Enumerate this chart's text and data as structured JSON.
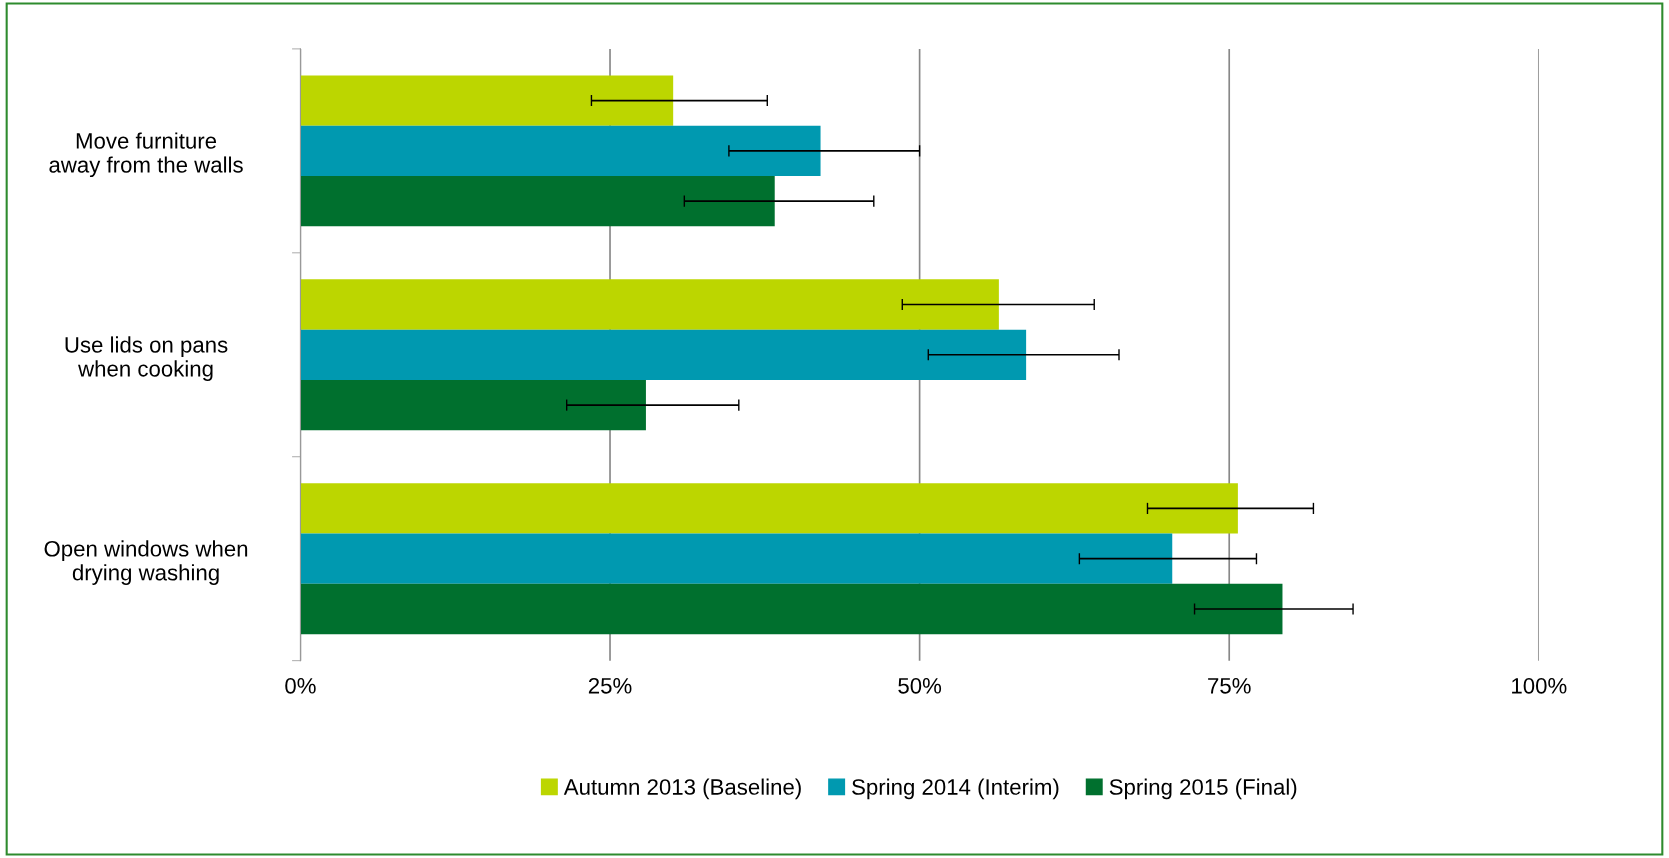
{
  "chart_data": {
    "type": "bar",
    "orientation": "horizontal",
    "categories": [
      "Move furniture\naway from the walls",
      "Use lids on pans\nwhen cooking",
      "Open windows when\ndrying washing"
    ],
    "series": [
      {
        "name": "Autumn 2013 (Baseline)",
        "color": "#bcd600",
        "values": [
          30.1,
          56.4,
          75.7
        ],
        "errors": [
          [
            23.5,
            37.7
          ],
          [
            48.6,
            64.1
          ],
          [
            68.4,
            81.8
          ]
        ]
      },
      {
        "name": "Spring 2014 (Interim)",
        "color": "#0099b0",
        "values": [
          42.0,
          58.6,
          70.4
        ],
        "errors": [
          [
            34.6,
            50.0
          ],
          [
            50.7,
            66.1
          ],
          [
            62.9,
            77.2
          ]
        ]
      },
      {
        "name": "Spring 2015 (Final)",
        "color": "#00702e",
        "values": [
          38.3,
          27.9,
          79.3
        ],
        "errors": [
          [
            31.0,
            46.3
          ],
          [
            21.5,
            35.4
          ],
          [
            72.2,
            85.0
          ]
        ]
      }
    ],
    "xlim": [
      0,
      100
    ],
    "xticks": [
      {
        "value": 0,
        "label": "0%"
      },
      {
        "value": 25,
        "label": "25%"
      },
      {
        "value": 50,
        "label": "50%"
      },
      {
        "value": 75,
        "label": "75%"
      },
      {
        "value": 100,
        "label": "100%"
      }
    ],
    "grid": "x",
    "legend": "bottom"
  }
}
